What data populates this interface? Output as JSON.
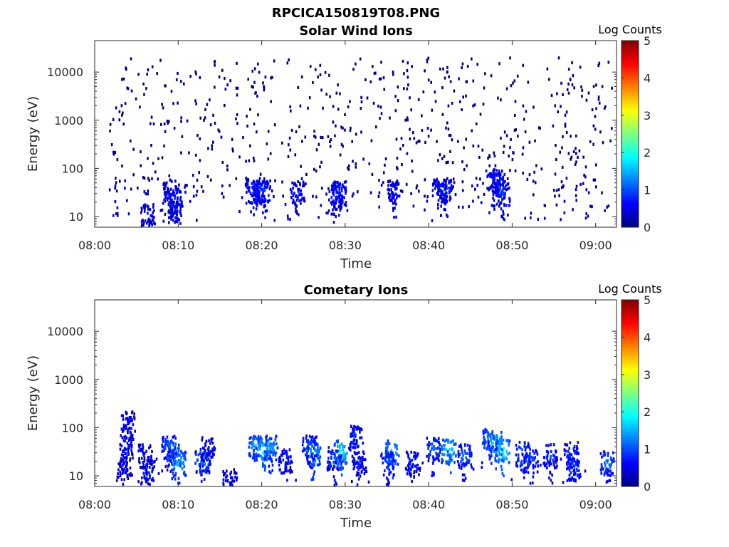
{
  "figure": {
    "title": "RPCICA150819T08.PNG"
  },
  "colormap": [
    "#00007f",
    "#0000ff",
    "#007fff",
    "#00ffff",
    "#7fff7f",
    "#ffff00",
    "#ff7f00",
    "#ff0000",
    "#7f0000"
  ],
  "chart_data": [
    {
      "type": "heatmap",
      "title": "Solar Wind Ions",
      "xlabel": "Time",
      "ylabel": "Energy (eV)",
      "x_ticks": [
        "08:00",
        "08:10",
        "08:20",
        "08:30",
        "08:40",
        "08:50",
        "09:00"
      ],
      "x_tick_minutes": [
        0,
        10,
        20,
        30,
        40,
        50,
        60
      ],
      "xlim_minutes": [
        0,
        62.5
      ],
      "y_ticks": [
        "10",
        "100",
        "1000",
        "10000"
      ],
      "y_tick_values": [
        10,
        100,
        1000,
        10000
      ],
      "ylim": [
        6,
        45000
      ],
      "yscale": "log",
      "colorbar": {
        "label": "Log Counts",
        "ticks": [
          "0",
          "1",
          "2",
          "3",
          "4",
          "5"
        ],
        "range": [
          0,
          5
        ]
      },
      "clusters": [
        {
          "t": 9.4,
          "e": 22,
          "v": 0.85
        },
        {
          "t": 9.6,
          "e": 12,
          "v": 0.8
        },
        {
          "t": 9.0,
          "e": 32,
          "v": 0.7
        },
        {
          "t": 19.6,
          "e": 35,
          "v": 1.0
        },
        {
          "t": 20.1,
          "e": 30,
          "v": 1.05
        },
        {
          "t": 18.8,
          "e": 33,
          "v": 0.85
        },
        {
          "t": 29.2,
          "e": 30,
          "v": 1.0
        },
        {
          "t": 28.7,
          "e": 25,
          "v": 0.8
        },
        {
          "t": 41.8,
          "e": 33,
          "v": 1.0
        },
        {
          "t": 41.2,
          "e": 35,
          "v": 0.8
        },
        {
          "t": 48.2,
          "e": 45,
          "v": 1.0
        },
        {
          "t": 48.8,
          "e": 30,
          "v": 0.95
        },
        {
          "t": 47.6,
          "e": 55,
          "v": 0.8
        },
        {
          "t": 6.3,
          "e": 10,
          "v": 0.6
        },
        {
          "t": 35.8,
          "e": 32,
          "v": 0.7
        },
        {
          "t": 24.2,
          "e": 30,
          "v": 0.7
        }
      ]
    },
    {
      "type": "heatmap",
      "title": "Cometary Ions",
      "xlabel": "Time",
      "ylabel": "Energy (eV)",
      "x_ticks": [
        "08:00",
        "08:10",
        "08:20",
        "08:30",
        "08:40",
        "08:50",
        "09:00"
      ],
      "x_tick_minutes": [
        0,
        10,
        20,
        30,
        40,
        50,
        60
      ],
      "xlim_minutes": [
        0,
        62.5
      ],
      "y_ticks": [
        "10",
        "100",
        "1000",
        "10000"
      ],
      "y_tick_values": [
        10,
        100,
        1000,
        10000
      ],
      "ylim": [
        6,
        45000
      ],
      "yscale": "log",
      "colorbar": {
        "label": "Log Counts",
        "ticks": [
          "0",
          "1",
          "2",
          "3",
          "4",
          "5"
        ],
        "range": [
          0,
          5
        ]
      },
      "clusters": [
        {
          "t": 3.7,
          "e": 40,
          "v": 0.9
        },
        {
          "t": 3.9,
          "e": 120,
          "v": 0.7
        },
        {
          "t": 3.4,
          "e": 14,
          "v": 0.6
        },
        {
          "t": 6.3,
          "e": 12,
          "v": 0.9
        },
        {
          "t": 6.0,
          "e": 25,
          "v": 0.7
        },
        {
          "t": 9.3,
          "e": 30,
          "v": 1.6
        },
        {
          "t": 10.0,
          "e": 18,
          "v": 1.75
        },
        {
          "t": 8.8,
          "e": 40,
          "v": 1.2
        },
        {
          "t": 12.8,
          "e": 20,
          "v": 1.4
        },
        {
          "t": 13.5,
          "e": 35,
          "v": 0.8
        },
        {
          "t": 16.1,
          "e": 8,
          "v": 0.6
        },
        {
          "t": 19.2,
          "e": 40,
          "v": 1.6
        },
        {
          "t": 20.2,
          "e": 34,
          "v": 2.0
        },
        {
          "t": 21.0,
          "e": 38,
          "v": 1.5
        },
        {
          "t": 22.7,
          "e": 20,
          "v": 0.9
        },
        {
          "t": 26.1,
          "e": 28,
          "v": 1.7
        },
        {
          "t": 25.6,
          "e": 38,
          "v": 1.2
        },
        {
          "t": 29.4,
          "e": 30,
          "v": 2.0
        },
        {
          "t": 28.6,
          "e": 22,
          "v": 1.1
        },
        {
          "t": 31.2,
          "e": 60,
          "v": 1.0
        },
        {
          "t": 31.6,
          "e": 18,
          "v": 0.8
        },
        {
          "t": 35.5,
          "e": 30,
          "v": 1.8
        },
        {
          "t": 35.0,
          "e": 18,
          "v": 1.1
        },
        {
          "t": 38.0,
          "e": 18,
          "v": 0.9
        },
        {
          "t": 40.5,
          "e": 35,
          "v": 1.2
        },
        {
          "t": 42.3,
          "e": 32,
          "v": 2.0
        },
        {
          "t": 44.2,
          "e": 25,
          "v": 1.2
        },
        {
          "t": 47.9,
          "e": 45,
          "v": 2.0
        },
        {
          "t": 48.8,
          "e": 32,
          "v": 2.1
        },
        {
          "t": 47.2,
          "e": 55,
          "v": 1.4
        },
        {
          "t": 51.2,
          "e": 28,
          "v": 1.3
        },
        {
          "t": 52.2,
          "e": 20,
          "v": 1.1
        },
        {
          "t": 54.5,
          "e": 25,
          "v": 1.0
        },
        {
          "t": 57.0,
          "e": 28,
          "v": 1.0
        },
        {
          "t": 57.3,
          "e": 14,
          "v": 1.1
        },
        {
          "t": 61.3,
          "e": 18,
          "v": 1.3
        }
      ]
    }
  ]
}
